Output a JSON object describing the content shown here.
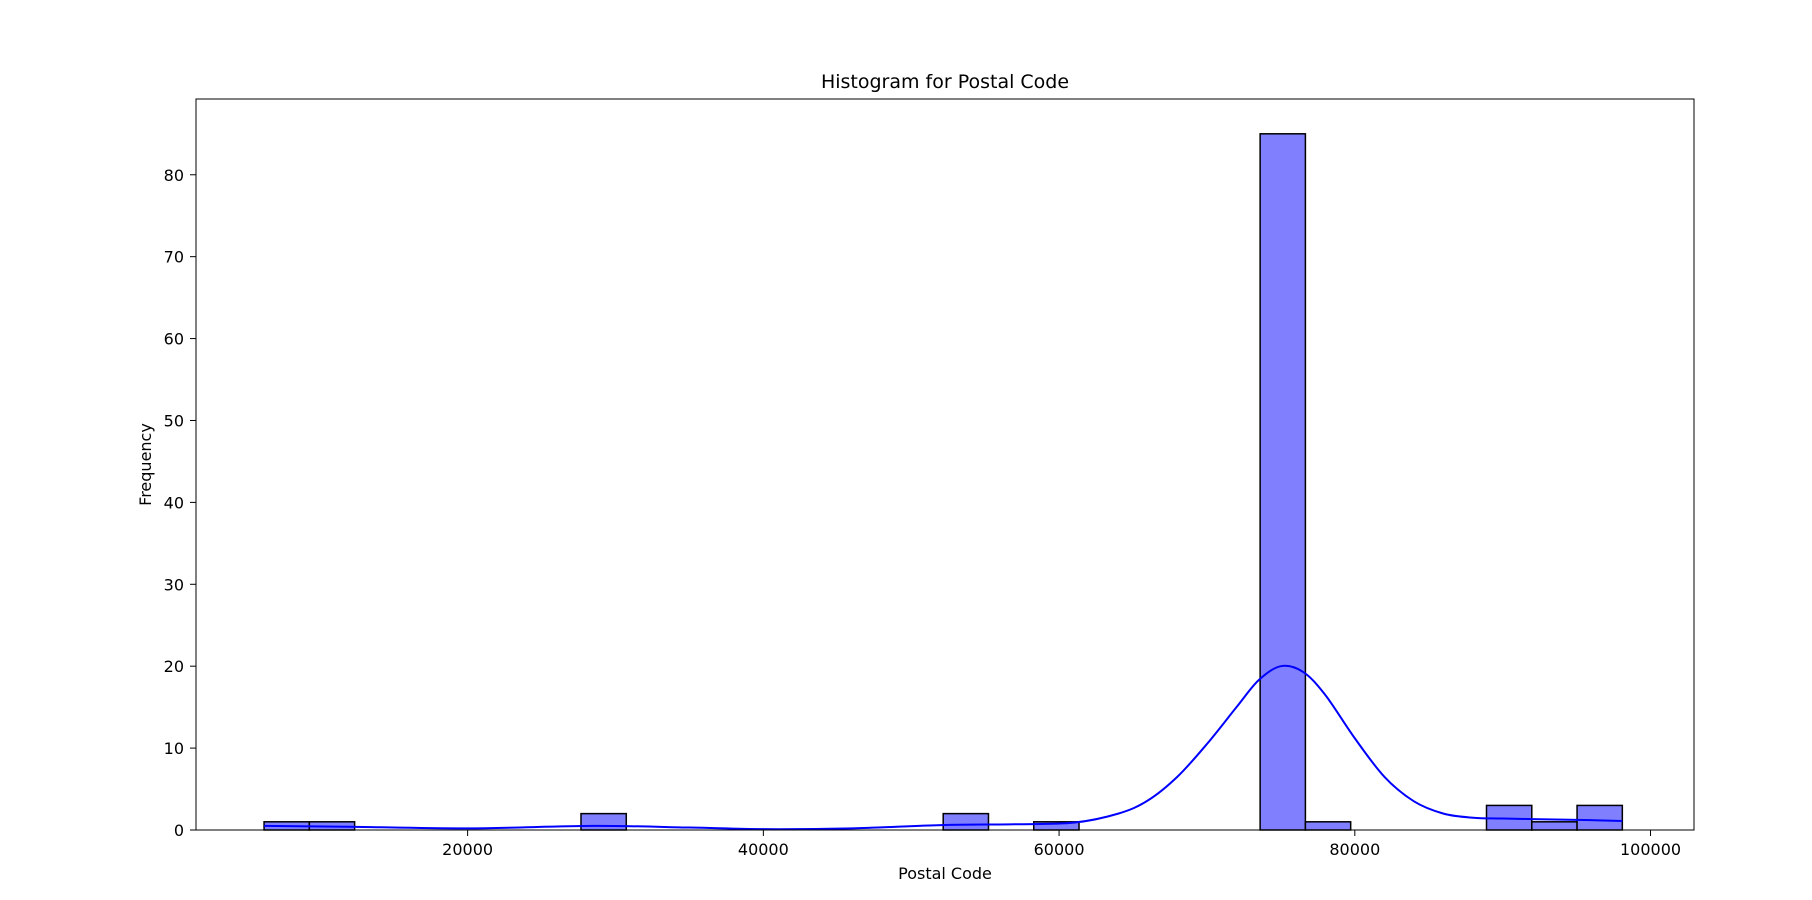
{
  "chart_data": {
    "type": "bar",
    "title": "Histogram for Postal Code",
    "xlabel": "Postal Code",
    "ylabel": "Frequency",
    "xlim": [
      1630,
      102940
    ],
    "ylim": [
      0,
      89.25
    ],
    "xticks": [
      20000,
      40000,
      60000,
      80000,
      100000
    ],
    "yticks": [
      0,
      10,
      20,
      30,
      40,
      50,
      60,
      70,
      80
    ],
    "bin_edges": [
      6233,
      9295,
      12357,
      15419,
      18481,
      21543,
      24605,
      27667,
      30729,
      33791,
      36853,
      39915,
      42977,
      46039,
      49101,
      52163,
      55225,
      58287,
      61349,
      64411,
      67473,
      70535,
      73597,
      76659,
      79721,
      82783,
      85845,
      88907,
      91969,
      95031,
      98093
    ],
    "counts": [
      1,
      1,
      0,
      0,
      0,
      0,
      0,
      2,
      0,
      0,
      0,
      0,
      0,
      0,
      0,
      2,
      0,
      1,
      0,
      0,
      0,
      0,
      85,
      1,
      0,
      0,
      0,
      3,
      1,
      3
    ],
    "kde": {
      "x": [
        6233,
        12000,
        20000,
        28500,
        35000,
        40000,
        46000,
        52000,
        57000,
        61000,
        64000,
        66000,
        68000,
        70000,
        72000,
        73500,
        75000,
        76500,
        78000,
        80000,
        82000,
        84000,
        86000,
        88000,
        90000,
        93000,
        96000,
        98093
      ],
      "y": [
        0.5,
        0.4,
        0.2,
        0.5,
        0.3,
        0.1,
        0.2,
        0.6,
        0.7,
        0.9,
        2.0,
        3.6,
        6.5,
        10.5,
        15.0,
        18.3,
        20.0,
        19.3,
        16.5,
        11.2,
        6.5,
        3.5,
        2.0,
        1.5,
        1.4,
        1.3,
        1.2,
        1.1
      ]
    },
    "colors": {
      "bar_fill": "#8080ff",
      "bar_edge": "#000000",
      "kde_line": "#0000ff"
    },
    "grid": false,
    "legend": false
  }
}
